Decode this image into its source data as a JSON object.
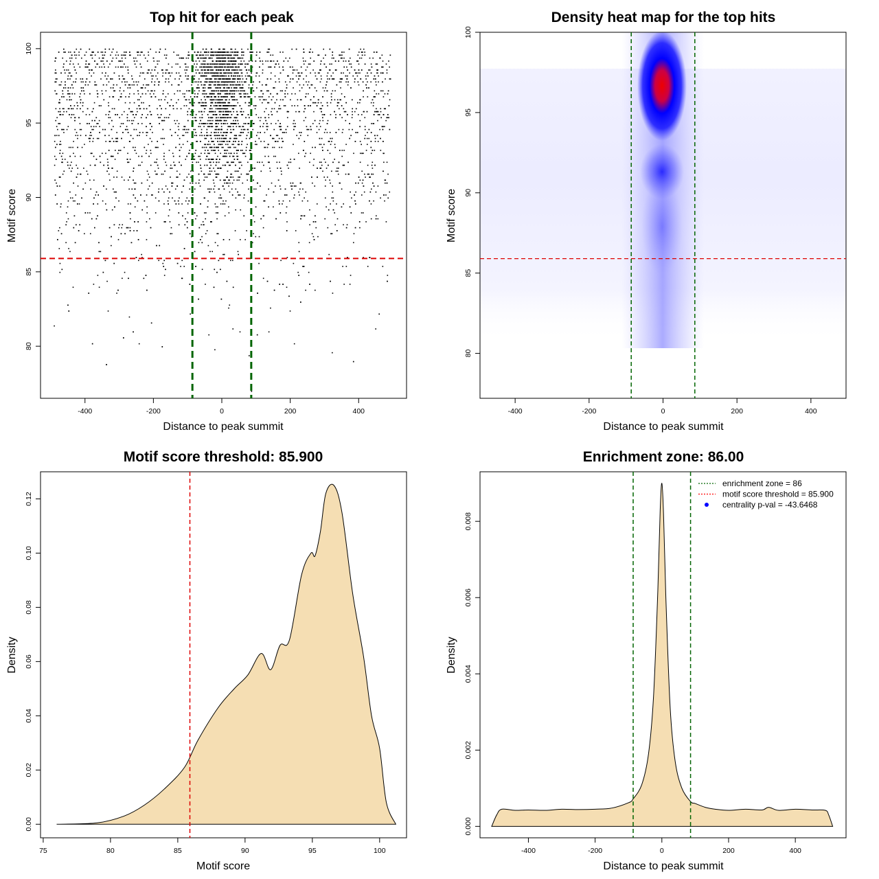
{
  "chart_data": [
    {
      "type": "scatter",
      "title": "Top hit for each peak",
      "xlabel": "Distance to peak summit",
      "ylabel": "Motif score",
      "xlim": [
        -530,
        540
      ],
      "ylim": [
        76.5,
        101.1
      ],
      "xticks": [
        -400,
        -200,
        0,
        200,
        400
      ],
      "yticks": [
        80,
        85,
        90,
        95,
        100
      ],
      "threshold_score": 85.9,
      "enrichment_zone": [
        -86,
        86
      ],
      "description_of_points": "dense cloud of per-peak top hits, x in [-500, 500], scores 77 to 100, concentrated near 0"
    },
    {
      "type": "heatmap",
      "title": "Density heat map for the top hits",
      "xlabel": "Distance to peak summit",
      "ylabel": "Motif score",
      "xlim": [
        -495,
        495
      ],
      "ylim": [
        77.2,
        100.0
      ],
      "xticks": [
        -400,
        -200,
        0,
        200,
        400
      ],
      "yticks": [
        80,
        85,
        90,
        95,
        100
      ],
      "threshold_score": 85.9,
      "enrichment_zone": [
        -86,
        86
      ],
      "peak_center": {
        "x": 0,
        "y": 96.6
      }
    },
    {
      "type": "area",
      "title": "Motif score threshold: 85.900",
      "xlabel": "Motif score",
      "ylabel": "Density",
      "xlim": [
        74.8,
        102.0
      ],
      "ylim": [
        -0.005,
        0.13
      ],
      "xticks": [
        75,
        80,
        85,
        90,
        95,
        100
      ],
      "yticks": [
        0.0,
        0.02,
        0.04,
        0.06,
        0.08,
        0.1,
        0.12
      ],
      "threshold": 85.9,
      "x": [
        76,
        79,
        81,
        82.5,
        84,
        85.5,
        86.5,
        88,
        89.2,
        90.2,
        91.2,
        91.9,
        92.6,
        93.3,
        94.2,
        94.9,
        95.2,
        95.6,
        96.0,
        96.6,
        97.2,
        98.0,
        98.8,
        99.4,
        100.0,
        100.5,
        101.2
      ],
      "y": [
        0.0,
        0.0005,
        0.003,
        0.007,
        0.013,
        0.021,
        0.031,
        0.043,
        0.05,
        0.055,
        0.063,
        0.057,
        0.066,
        0.068,
        0.092,
        0.1,
        0.099,
        0.108,
        0.122,
        0.125,
        0.115,
        0.085,
        0.062,
        0.04,
        0.028,
        0.008,
        0.0
      ]
    },
    {
      "type": "area",
      "title": "Enrichment zone: 86.00",
      "xlabel": "Distance to peak summit",
      "ylabel": "Density",
      "xlim": [
        -545,
        552
      ],
      "ylim": [
        -0.0003,
        0.0093
      ],
      "xticks": [
        -400,
        -200,
        0,
        200,
        400
      ],
      "yticks": [
        0.0,
        0.002,
        0.004,
        0.006,
        0.008
      ],
      "enrichment_zone": [
        -86,
        86
      ],
      "x": [
        -510,
        -495,
        -480,
        -440,
        -400,
        -350,
        -300,
        -250,
        -200,
        -150,
        -100,
        -86,
        -60,
        -40,
        -25,
        -12,
        -5,
        0,
        5,
        12,
        25,
        40,
        60,
        86,
        100,
        130,
        160,
        200,
        250,
        300,
        320,
        350,
        400,
        450,
        490,
        500,
        512
      ],
      "y": [
        0.0,
        0.0003,
        0.00045,
        0.00042,
        0.00043,
        0.00042,
        0.00045,
        0.00044,
        0.00045,
        0.00048,
        0.00062,
        0.00072,
        0.0011,
        0.0019,
        0.0034,
        0.0062,
        0.0083,
        0.009,
        0.0082,
        0.006,
        0.0031,
        0.0017,
        0.001,
        0.00065,
        0.0006,
        0.0005,
        0.00045,
        0.00042,
        0.00045,
        0.00043,
        0.0005,
        0.00042,
        0.00045,
        0.00043,
        0.00042,
        0.0003,
        0.0
      ],
      "legend": [
        {
          "label": "enrichment zone = 86",
          "style": "dotted",
          "color": "#006400"
        },
        {
          "label": "motif score threshold = 85.900",
          "style": "dotted",
          "color": "#ff0000"
        },
        {
          "label": "centrality p-val = -43.6468",
          "style": "point",
          "color": "#0000ff"
        }
      ]
    }
  ]
}
